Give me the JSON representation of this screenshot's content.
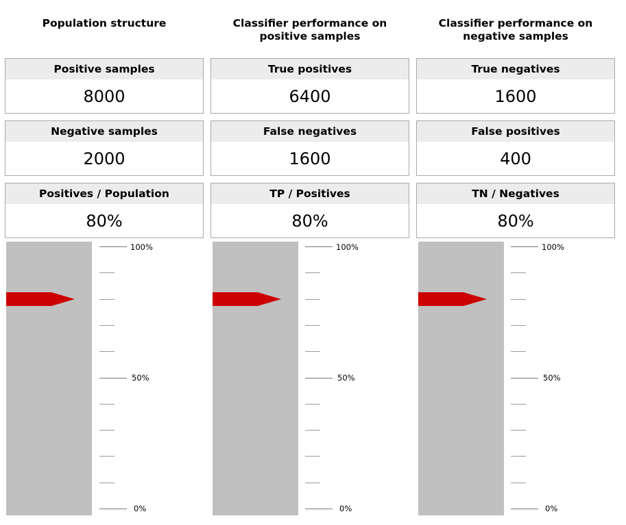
{
  "columns": [
    {
      "title_line1": "Population structure",
      "title_line2": "",
      "boxes": [
        {
          "label": "Positive samples",
          "value": "8000"
        },
        {
          "label": "Negative samples",
          "value": "2000"
        },
        {
          "label": "Positives / Population",
          "value": "80%"
        }
      ],
      "gauge_level_percent": 80
    },
    {
      "title_line1": "Classifier performance on",
      "title_line2": "positive samples",
      "boxes": [
        {
          "label": "True positives",
          "value": "6400"
        },
        {
          "label": "False negatives",
          "value": "1600"
        },
        {
          "label": "TP / Positives",
          "value": "80%"
        }
      ],
      "gauge_level_percent": 80
    },
    {
      "title_line1": "Classifier performance on",
      "title_line2": "negative samples",
      "boxes": [
        {
          "label": "True negatives",
          "value": "1600"
        },
        {
          "label": "False positives",
          "value": "400"
        },
        {
          "label": "TN / Negatives",
          "value": "80%"
        }
      ],
      "gauge_level_percent": 80
    }
  ],
  "scale_labels": {
    "top": "100%",
    "mid": "50%",
    "bottom": "0%"
  },
  "colors": {
    "gauge_fill": "#c0c0c0",
    "arrow": "#cc0000",
    "box_header": "#ececec"
  }
}
